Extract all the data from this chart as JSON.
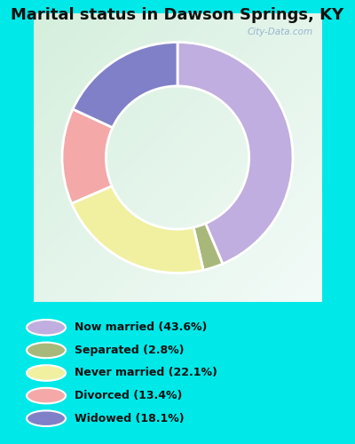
{
  "title": "Marital status in Dawson Springs, KY",
  "categories": [
    "Now married",
    "Separated",
    "Never married",
    "Divorced",
    "Widowed"
  ],
  "values": [
    43.6,
    2.8,
    22.1,
    13.4,
    18.1
  ],
  "colors": [
    "#c0aee0",
    "#a8b87a",
    "#f0f0a0",
    "#f4a8a8",
    "#8080c8"
  ],
  "legend_labels": [
    "Now married (43.6%)",
    "Separated (2.8%)",
    "Never married (22.1%)",
    "Divorced (13.4%)",
    "Widowed (18.1%)"
  ],
  "legend_colors": [
    "#c0aee0",
    "#a8b87a",
    "#f0f0a0",
    "#f4a8a8",
    "#8080c8"
  ],
  "background_color_legend": "#00e8e8",
  "title_fontsize": 13,
  "watermark": "City-Data.com",
  "donut_width": 0.38,
  "startangle": 90
}
